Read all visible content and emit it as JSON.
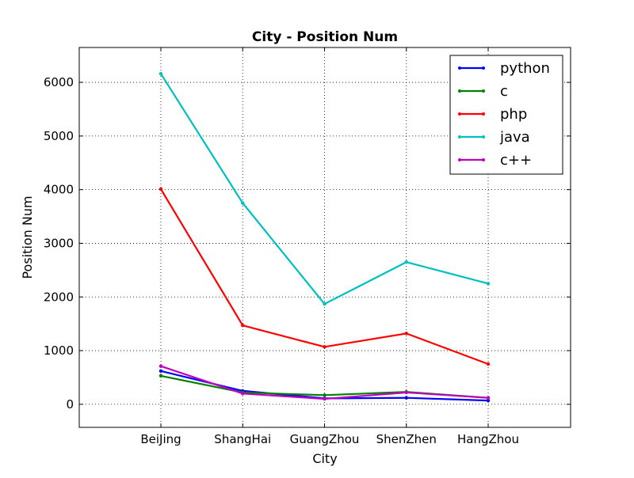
{
  "chart_data": {
    "type": "line",
    "title": "City - Position Num",
    "xlabel": "City",
    "ylabel": "Position Num",
    "categories": [
      "BeiJing",
      "ShangHai",
      "GuangZhou",
      "ShenZhen",
      "HangZhou"
    ],
    "ylim": [
      -430,
      6650
    ],
    "yticks": [
      0,
      1000,
      2000,
      3000,
      4000,
      5000,
      6000
    ],
    "yticklabels": [
      "0",
      "1000",
      "2000",
      "3000",
      "4000",
      "5000",
      "6000"
    ],
    "grid": true,
    "legend_position": "top-right",
    "series": [
      {
        "name": "python",
        "color": "#0000ff",
        "values": [
          620,
          250,
          110,
          120,
          70
        ]
      },
      {
        "name": "c",
        "color": "#008000",
        "values": [
          530,
          220,
          170,
          230,
          120
        ]
      },
      {
        "name": "php",
        "color": "#ff0000",
        "values": [
          4010,
          1470,
          1070,
          1320,
          750
        ]
      },
      {
        "name": "java",
        "color": "#00bfbf",
        "values": [
          6160,
          3750,
          1870,
          2650,
          2250
        ]
      },
      {
        "name": "c++",
        "color": "#bf00bf",
        "values": [
          710,
          200,
          100,
          220,
          120
        ]
      }
    ]
  }
}
